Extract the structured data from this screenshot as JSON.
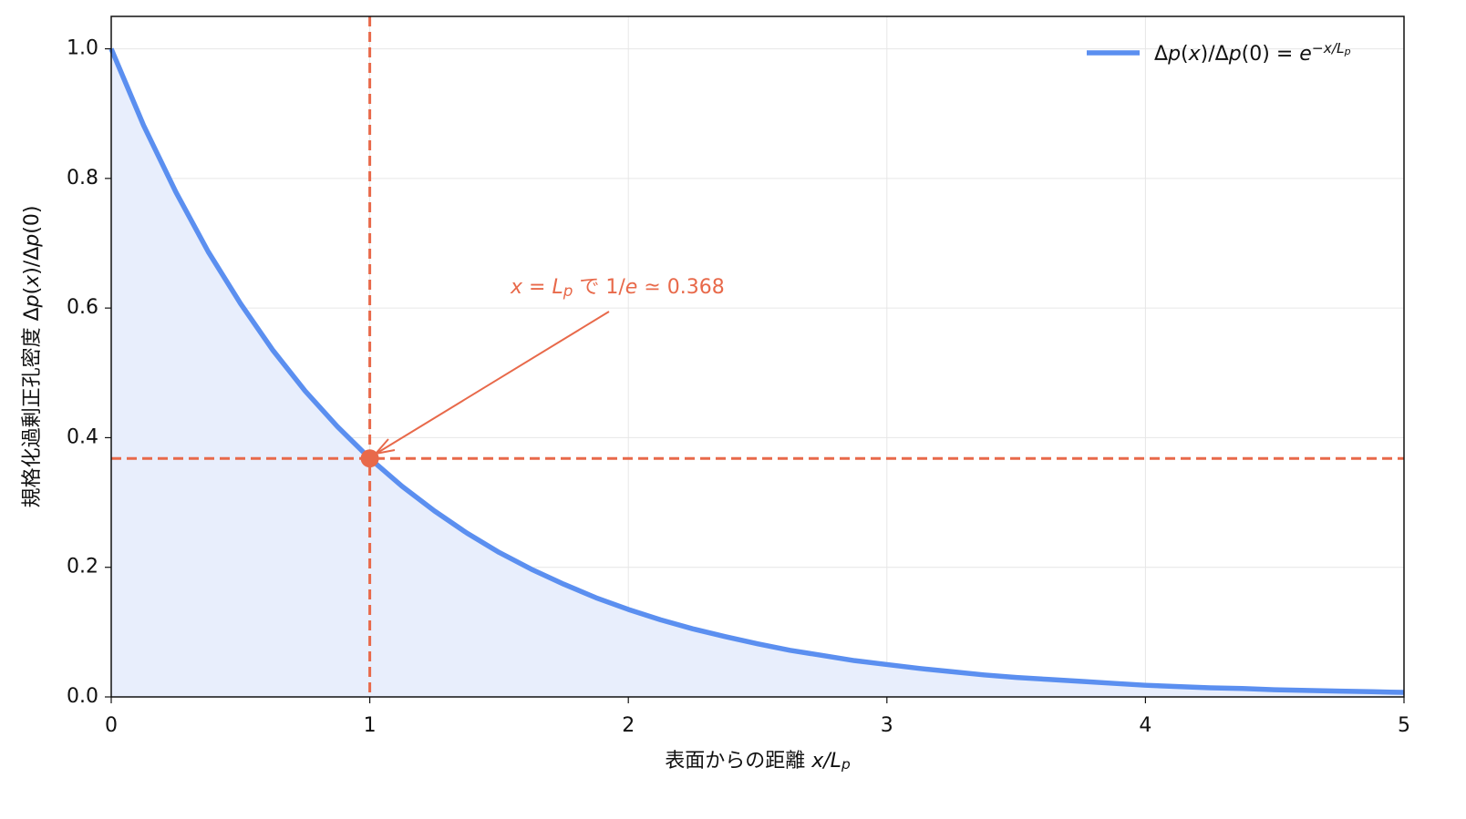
{
  "chart_data": {
    "type": "line",
    "xlabel": [
      {
        "text": "表面からの距離 ",
        "style": "normal"
      },
      {
        "text": "x/L",
        "style": "italic"
      },
      {
        "text": "p",
        "style": "sub"
      }
    ],
    "ylabel": [
      {
        "text": "規格化過剰正孔密度 Δ",
        "style": "normal"
      },
      {
        "text": "p",
        "style": "italic"
      },
      {
        "text": "(",
        "style": "normal"
      },
      {
        "text": "x",
        "style": "italic"
      },
      {
        "text": ")/Δ",
        "style": "normal"
      },
      {
        "text": "p",
        "style": "italic"
      },
      {
        "text": "(0)",
        "style": "normal"
      }
    ],
    "x": [
      0,
      0.125,
      0.25,
      0.375,
      0.5,
      0.625,
      0.75,
      0.875,
      1,
      1.125,
      1.25,
      1.375,
      1.5,
      1.625,
      1.75,
      1.875,
      2,
      2.125,
      2.25,
      2.375,
      2.5,
      2.625,
      2.75,
      2.875,
      3,
      3.125,
      3.25,
      3.375,
      3.5,
      3.625,
      3.75,
      3.875,
      4,
      4.125,
      4.25,
      4.375,
      4.5,
      4.625,
      4.75,
      4.875,
      5
    ],
    "series": [
      {
        "name": [
          {
            "text": "Δ",
            "style": "normal"
          },
          {
            "text": "p",
            "style": "italic"
          },
          {
            "text": "(",
            "style": "normal"
          },
          {
            "text": "x",
            "style": "italic"
          },
          {
            "text": ")/Δ",
            "style": "normal"
          },
          {
            "text": "p",
            "style": "italic"
          },
          {
            "text": "(0) = ",
            "style": "normal"
          },
          {
            "text": "e",
            "style": "italic"
          },
          {
            "text": "−x/L",
            "style": "sup"
          },
          {
            "text": "p",
            "style": "supsub"
          }
        ],
        "color": "#5b8ff0",
        "fill_color": "#e8eefc",
        "values": [
          1,
          0.882,
          0.779,
          0.687,
          0.607,
          0.535,
          0.472,
          0.417,
          0.368,
          0.325,
          0.287,
          0.253,
          0.223,
          0.197,
          0.174,
          0.153,
          0.135,
          0.119,
          0.105,
          0.093,
          0.082,
          0.072,
          0.064,
          0.056,
          0.05,
          0.044,
          0.039,
          0.034,
          0.03,
          0.027,
          0.024,
          0.021,
          0.018,
          0.016,
          0.014,
          0.013,
          0.011,
          0.01,
          0.009,
          0.008,
          0.007
        ]
      }
    ],
    "marker": {
      "x": 1,
      "y": 0.368,
      "color": "#e8694a"
    },
    "annotation": [
      {
        "text": "x",
        "style": "italic"
      },
      {
        "text": " = ",
        "style": "normal"
      },
      {
        "text": "L",
        "style": "italic"
      },
      {
        "text": "p",
        "style": "sub"
      },
      {
        "text": " で 1/",
        "style": "normal"
      },
      {
        "text": "e",
        "style": "italic"
      },
      {
        "text": " ≃ 0.368",
        "style": "normal"
      }
    ],
    "xlim": [
      0,
      5
    ],
    "ylim": [
      0,
      1.05
    ],
    "xticks": [
      0,
      1,
      2,
      3,
      4,
      5
    ],
    "yticks": [
      {
        "value": 0,
        "label": "0.0"
      },
      {
        "value": 0.2,
        "label": "0.2"
      },
      {
        "value": 0.4,
        "label": "0.4"
      },
      {
        "value": 0.6,
        "label": "0.6"
      },
      {
        "value": 0.8,
        "label": "0.8"
      },
      {
        "value": 1,
        "label": "1.0"
      }
    ],
    "grid": true,
    "legend": "upper right"
  }
}
